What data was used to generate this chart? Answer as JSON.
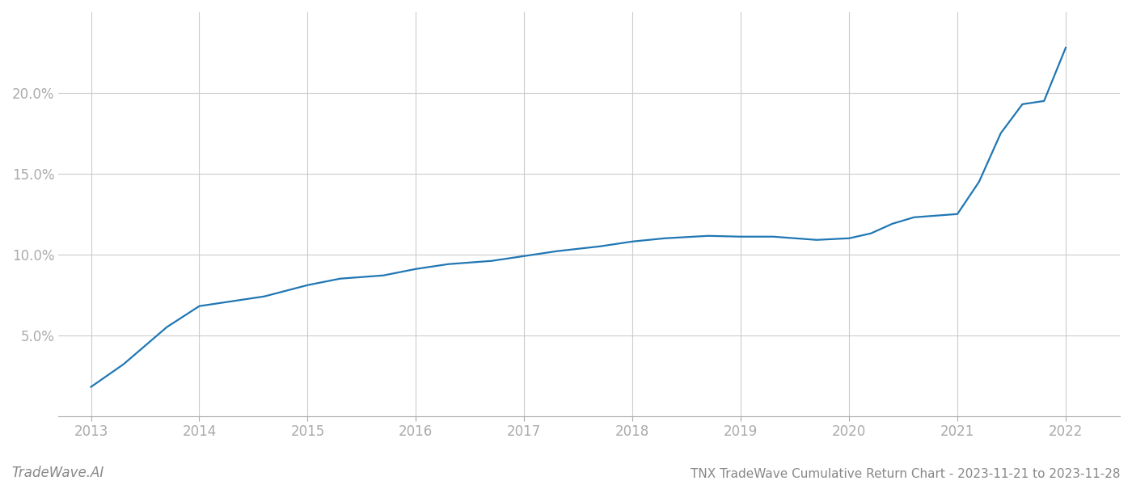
{
  "x_years": [
    2013.0,
    2013.3,
    2013.7,
    2014.0,
    2014.3,
    2014.6,
    2015.0,
    2015.3,
    2015.7,
    2016.0,
    2016.3,
    2016.7,
    2017.0,
    2017.3,
    2017.7,
    2018.0,
    2018.3,
    2018.7,
    2019.0,
    2019.3,
    2019.7,
    2020.0,
    2020.2,
    2020.4,
    2020.6,
    2020.8,
    2021.0,
    2021.2,
    2021.4,
    2021.6,
    2021.8,
    2022.0
  ],
  "y_values": [
    1.8,
    3.2,
    5.5,
    6.8,
    7.1,
    7.4,
    8.1,
    8.5,
    8.7,
    9.1,
    9.4,
    9.6,
    9.9,
    10.2,
    10.5,
    10.8,
    11.0,
    11.15,
    11.1,
    11.1,
    10.9,
    11.0,
    11.3,
    11.9,
    12.3,
    12.4,
    12.5,
    14.5,
    17.5,
    19.3,
    19.5,
    22.8
  ],
  "line_color": "#2077b4",
  "background_color": "#ffffff",
  "grid_color": "#cccccc",
  "title": "TNX TradeWave Cumulative Return Chart - 2023-11-21 to 2023-11-28",
  "watermark": "TradeWave.AI",
  "xlim": [
    2012.7,
    2022.5
  ],
  "ylim": [
    0,
    25
  ],
  "yticks": [
    5.0,
    10.0,
    15.0,
    20.0
  ],
  "xticks": [
    2013,
    2014,
    2015,
    2016,
    2017,
    2018,
    2019,
    2020,
    2021,
    2022
  ],
  "tick_color": "#aaaaaa",
  "title_fontsize": 11,
  "watermark_fontsize": 12,
  "line_width": 1.6
}
